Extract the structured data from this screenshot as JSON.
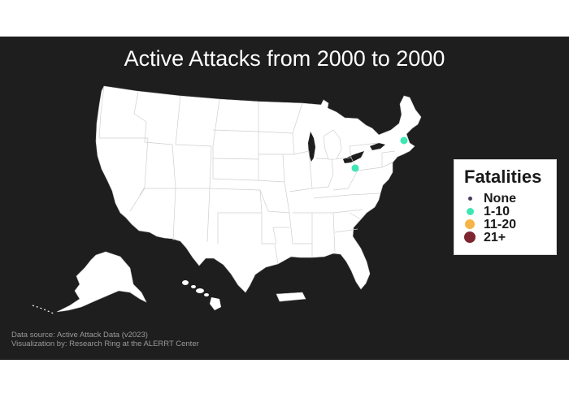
{
  "title": "Active Attacks from 2000 to 2000",
  "legend": {
    "title": "Fatalities",
    "items": [
      {
        "label": "None",
        "color": "#4b3b5c",
        "size": "small"
      },
      {
        "label": "1-10",
        "color": "#3ee6b4",
        "size": "medium"
      },
      {
        "label": "11-20",
        "color": "#f6b448",
        "size": "large"
      },
      {
        "label": "21+",
        "color": "#7d2630",
        "size": "largest"
      }
    ]
  },
  "incidents": [
    {
      "location": "Massachusetts",
      "category": "1-10"
    },
    {
      "location": "Pennsylvania",
      "category": "1-10"
    }
  ],
  "caption": {
    "line1": "Data source: Active Attack Data (v2023)",
    "line2": "Visualization by: Research Ring at the ALERRT Center"
  },
  "colors": {
    "background": "#1e1e1e",
    "land": "#ffffff",
    "borders": "#c9c9c9",
    "title": "#ffffff"
  }
}
